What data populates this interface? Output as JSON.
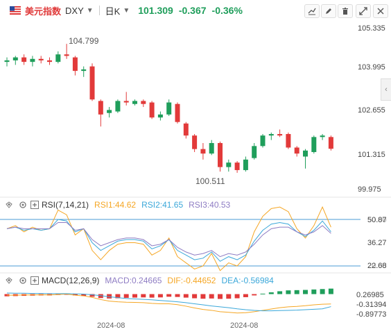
{
  "header": {
    "symbol_name": "美元指数",
    "symbol_code": "DXY",
    "period": "日K",
    "price": "101.309",
    "change": "-0.367",
    "change_pct": "-0.36%"
  },
  "colors": {
    "up": "#1f9e5b",
    "down": "#e23a3a",
    "rsi1": "#f5a623",
    "rsi2": "#3aa7d9",
    "rsi3": "#8e7cc3",
    "macd_dif": "#f5a623",
    "macd_dea": "#3aa7d9"
  },
  "toolbar": {
    "icons": [
      "draw-line-icon",
      "pencil-icon",
      "trash-icon",
      "fullscreen-icon",
      "close-icon"
    ]
  },
  "expand_glyph": "‹",
  "main_chart": {
    "y_ticks": [
      "105.335",
      "103.995",
      "102.655",
      "101.315",
      "99.975"
    ],
    "high_label": "104.799",
    "low_label": "100.511"
  },
  "rsi": {
    "name": "RSI(7,14,21)",
    "rsi1": "RSI1:44.62",
    "rsi2": "RSI2:41.65",
    "rsi3": "RSI3:40.53",
    "y_ticks": [
      "50.87",
      "36.27",
      "22.68"
    ],
    "upper_ref": "50.00",
    "lower_ref": "20.00"
  },
  "macd": {
    "name": "MACD(12,26,9)",
    "macd": "MACD:0.24665",
    "dif": "DIF:-0.44652",
    "dea": "DEA:-0.56984",
    "y_ticks": [
      "0.26985",
      "-0.31394",
      "-0.89773"
    ]
  },
  "x_labels": [
    "2024-08",
    "2024-08"
  ],
  "chart_data": {
    "type": "candlestick",
    "candles": [
      {
        "o": 104.2,
        "h": 104.35,
        "l": 104.05,
        "c": 104.25
      },
      {
        "o": 104.25,
        "h": 104.4,
        "l": 104.1,
        "c": 104.35
      },
      {
        "o": 104.35,
        "h": 104.45,
        "l": 104.1,
        "c": 104.2
      },
      {
        "o": 104.2,
        "h": 104.4,
        "l": 104.05,
        "c": 104.3
      },
      {
        "o": 104.3,
        "h": 104.4,
        "l": 104.15,
        "c": 104.25
      },
      {
        "o": 104.25,
        "h": 104.35,
        "l": 104.1,
        "c": 104.2
      },
      {
        "o": 104.2,
        "h": 104.55,
        "l": 104.15,
        "c": 104.45
      },
      {
        "o": 104.45,
        "h": 104.8,
        "l": 104.3,
        "c": 104.4
      },
      {
        "o": 104.35,
        "h": 104.4,
        "l": 103.75,
        "c": 103.9
      },
      {
        "o": 103.9,
        "h": 104.05,
        "l": 103.7,
        "c": 103.95
      },
      {
        "o": 104.05,
        "h": 104.15,
        "l": 102.9,
        "c": 102.95
      },
      {
        "o": 102.9,
        "h": 102.95,
        "l": 102.05,
        "c": 102.45
      },
      {
        "o": 102.5,
        "h": 102.7,
        "l": 102.35,
        "c": 102.6
      },
      {
        "o": 102.55,
        "h": 102.95,
        "l": 102.5,
        "c": 102.9
      },
      {
        "o": 102.9,
        "h": 103.2,
        "l": 102.75,
        "c": 102.85
      },
      {
        "o": 102.8,
        "h": 102.95,
        "l": 102.75,
        "c": 102.9
      },
      {
        "o": 102.9,
        "h": 102.95,
        "l": 102.7,
        "c": 102.8
      },
      {
        "o": 102.85,
        "h": 102.9,
        "l": 102.3,
        "c": 102.35
      },
      {
        "o": 102.35,
        "h": 102.55,
        "l": 102.25,
        "c": 102.45
      },
      {
        "o": 102.45,
        "h": 102.95,
        "l": 102.4,
        "c": 102.85
      },
      {
        "o": 102.8,
        "h": 102.85,
        "l": 102.15,
        "c": 102.2
      },
      {
        "o": 102.15,
        "h": 102.2,
        "l": 101.65,
        "c": 101.75
      },
      {
        "o": 101.75,
        "h": 101.8,
        "l": 101.2,
        "c": 101.3
      },
      {
        "o": 101.3,
        "h": 101.5,
        "l": 100.95,
        "c": 101.15
      },
      {
        "o": 101.15,
        "h": 101.6,
        "l": 101.1,
        "c": 101.5
      },
      {
        "o": 101.5,
        "h": 101.55,
        "l": 100.55,
        "c": 100.7
      },
      {
        "o": 100.7,
        "h": 100.95,
        "l": 100.55,
        "c": 100.85
      },
      {
        "o": 100.85,
        "h": 100.9,
        "l": 100.51,
        "c": 100.6
      },
      {
        "o": 100.6,
        "h": 101.05,
        "l": 100.55,
        "c": 100.95
      },
      {
        "o": 101.0,
        "h": 101.5,
        "l": 100.95,
        "c": 101.4
      },
      {
        "o": 101.4,
        "h": 101.8,
        "l": 101.35,
        "c": 101.75
      },
      {
        "o": 101.75,
        "h": 101.85,
        "l": 101.6,
        "c": 101.8
      },
      {
        "o": 101.8,
        "h": 101.95,
        "l": 101.7,
        "c": 101.75
      },
      {
        "o": 101.8,
        "h": 101.85,
        "l": 101.3,
        "c": 101.35
      },
      {
        "o": 101.35,
        "h": 101.4,
        "l": 101.05,
        "c": 101.15
      },
      {
        "o": 101.05,
        "h": 101.3,
        "l": 100.65,
        "c": 101.25
      },
      {
        "o": 101.2,
        "h": 101.75,
        "l": 101.15,
        "c": 101.7
      },
      {
        "o": 101.7,
        "h": 101.8,
        "l": 101.6,
        "c": 101.75
      },
      {
        "o": 101.7,
        "h": 101.75,
        "l": 101.25,
        "c": 101.31
      }
    ],
    "rsi1": [
      44,
      46,
      42,
      45,
      43,
      44,
      56,
      53,
      40,
      44,
      30,
      24,
      30,
      34,
      35,
      35,
      34,
      27,
      30,
      38,
      26,
      22,
      18,
      20,
      28,
      17,
      22,
      20,
      26,
      42,
      52,
      57,
      58,
      55,
      44,
      38,
      46,
      58,
      45
    ],
    "rsi2": [
      44,
      45,
      43,
      44,
      43,
      44,
      50,
      49,
      42,
      44,
      35,
      30,
      33,
      36,
      37,
      37,
      36,
      31,
      33,
      37,
      30,
      27,
      24,
      25,
      29,
      23,
      26,
      24,
      27,
      36,
      43,
      47,
      48,
      47,
      42,
      39,
      43,
      49,
      42
    ],
    "rsi3": [
      44,
      45,
      44,
      44,
      44,
      44,
      48,
      48,
      43,
      44,
      37,
      33,
      35,
      37,
      38,
      38,
      37,
      33,
      34,
      37,
      32,
      29,
      27,
      28,
      30,
      26,
      28,
      27,
      29,
      34,
      40,
      44,
      45,
      45,
      42,
      40,
      42,
      46,
      41
    ],
    "macd_hist": [
      -0.1,
      -0.09,
      -0.08,
      -0.07,
      -0.06,
      -0.06,
      -0.04,
      -0.02,
      -0.06,
      -0.08,
      -0.12,
      -0.18,
      -0.2,
      -0.19,
      -0.17,
      -0.16,
      -0.15,
      -0.16,
      -0.15,
      -0.12,
      -0.13,
      -0.16,
      -0.19,
      -0.21,
      -0.2,
      -0.22,
      -0.21,
      -0.19,
      -0.14,
      -0.06,
      0.02,
      0.08,
      0.13,
      0.17,
      0.18,
      0.19,
      0.21,
      0.23,
      0.25
    ],
    "dif": [
      -0.05,
      -0.05,
      -0.04,
      -0.04,
      -0.03,
      -0.04,
      -0.02,
      0.0,
      -0.05,
      -0.08,
      -0.15,
      -0.25,
      -0.32,
      -0.35,
      -0.37,
      -0.38,
      -0.39,
      -0.42,
      -0.44,
      -0.44,
      -0.48,
      -0.55,
      -0.63,
      -0.7,
      -0.74,
      -0.8,
      -0.83,
      -0.86,
      -0.85,
      -0.8,
      -0.74,
      -0.68,
      -0.62,
      -0.58,
      -0.56,
      -0.53,
      -0.49,
      -0.46,
      -0.45
    ],
    "dea": [
      0.05,
      0.04,
      0.04,
      0.03,
      0.03,
      0.02,
      0.02,
      0.02,
      0.01,
      0.0,
      -0.03,
      -0.07,
      -0.12,
      -0.16,
      -0.2,
      -0.22,
      -0.24,
      -0.26,
      -0.29,
      -0.32,
      -0.35,
      -0.39,
      -0.44,
      -0.49,
      -0.54,
      -0.58,
      -0.62,
      -0.67,
      -0.71,
      -0.74,
      -0.76,
      -0.76,
      -0.75,
      -0.74,
      -0.73,
      -0.71,
      -0.69,
      -0.67,
      -0.57
    ]
  }
}
